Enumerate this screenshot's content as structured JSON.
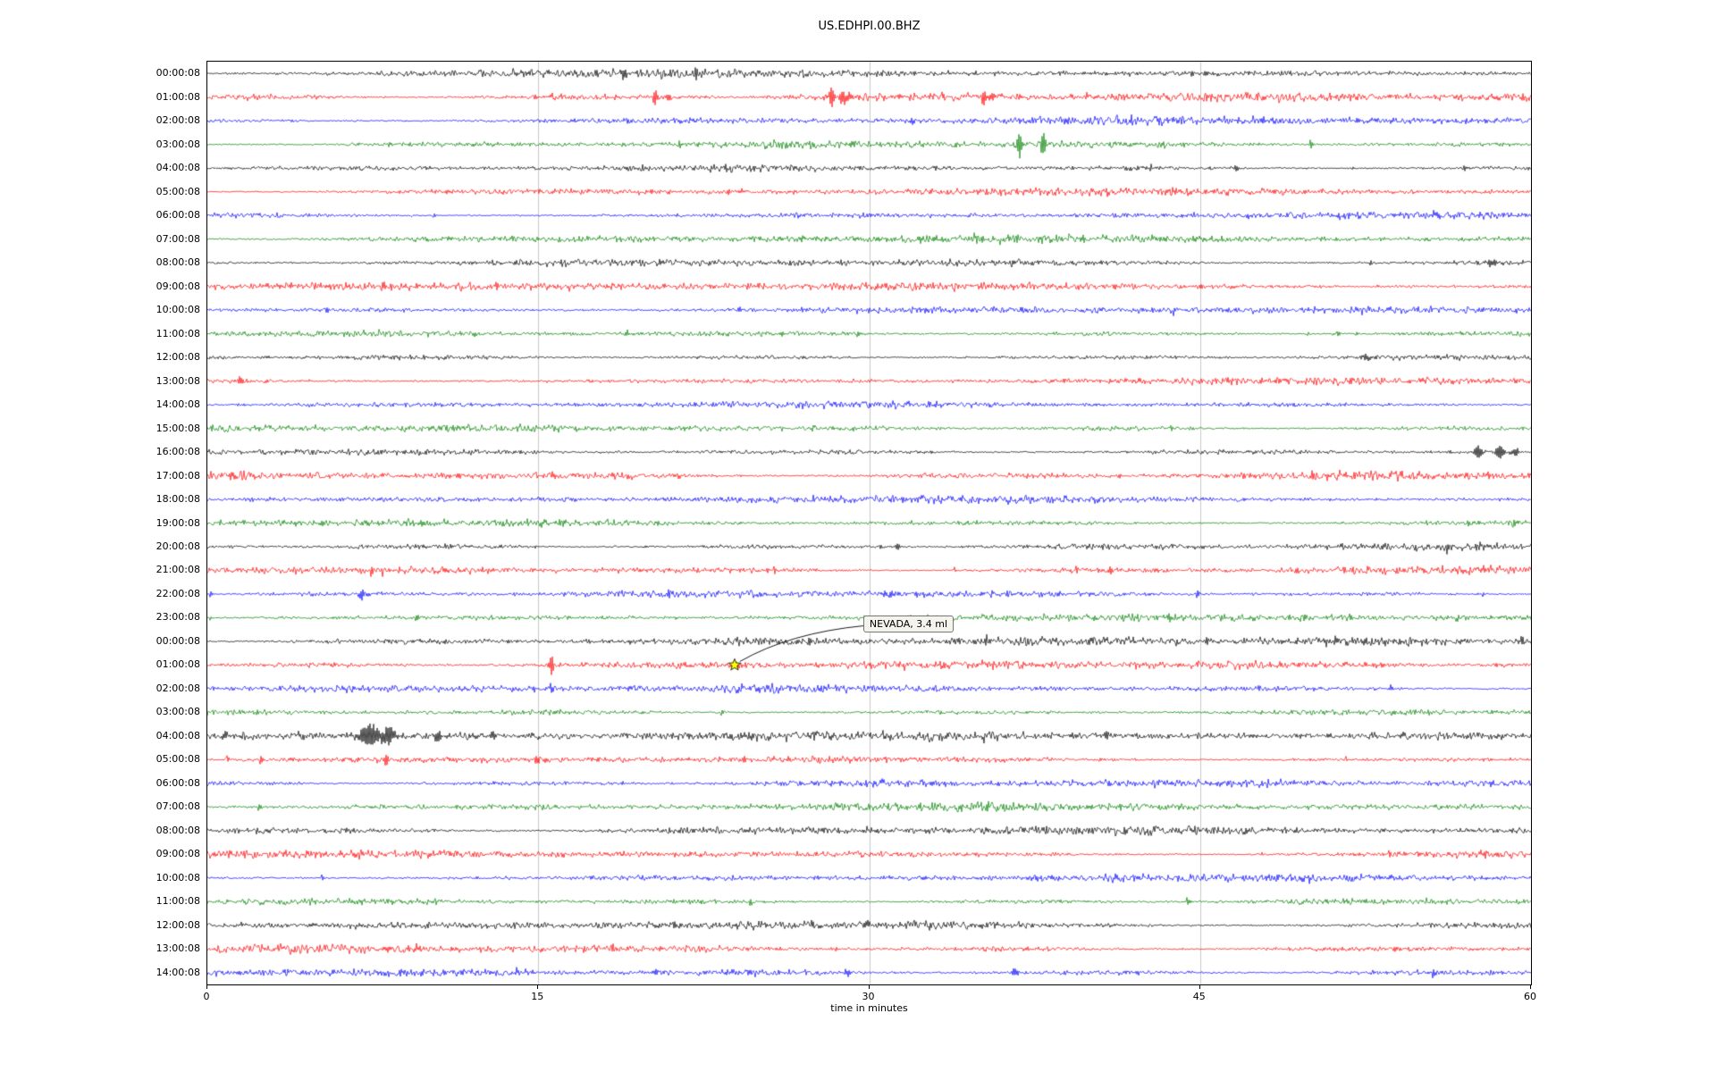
{
  "title": "US.EDHPI.00.BHZ",
  "xlabel": "time in minutes",
  "colors": {
    "black": "#000000",
    "red": "#ff0000",
    "blue": "#0000ff",
    "green": "#008000",
    "grid": "#c9c9c9",
    "axis": "#000000",
    "marker_fill": "#ffff00",
    "marker_edge": "#000000",
    "background": "#ffffff"
  },
  "annotation": {
    "label": "NEVADA, 3.4 ml"
  },
  "chart_data": {
    "type": "line",
    "kind": "helicorder-seismogram",
    "title": "US.EDHPI.00.BHZ",
    "xlabel": "time in minutes",
    "x_range_minutes": [
      0,
      60
    ],
    "x_ticks": [
      0,
      15,
      30,
      45,
      60
    ],
    "grid_lines_minutes": [
      15,
      30,
      45
    ],
    "rows": [
      {
        "label": "00:00:08",
        "color": "black"
      },
      {
        "label": "01:00:08",
        "color": "red"
      },
      {
        "label": "02:00:08",
        "color": "blue"
      },
      {
        "label": "03:00:08",
        "color": "green"
      },
      {
        "label": "04:00:08",
        "color": "black"
      },
      {
        "label": "05:00:08",
        "color": "red"
      },
      {
        "label": "06:00:08",
        "color": "blue"
      },
      {
        "label": "07:00:08",
        "color": "green"
      },
      {
        "label": "08:00:08",
        "color": "black"
      },
      {
        "label": "09:00:08",
        "color": "red"
      },
      {
        "label": "10:00:08",
        "color": "blue"
      },
      {
        "label": "11:00:08",
        "color": "green"
      },
      {
        "label": "12:00:08",
        "color": "black"
      },
      {
        "label": "13:00:08",
        "color": "red"
      },
      {
        "label": "14:00:08",
        "color": "blue"
      },
      {
        "label": "15:00:08",
        "color": "green"
      },
      {
        "label": "16:00:08",
        "color": "black"
      },
      {
        "label": "17:00:08",
        "color": "red"
      },
      {
        "label": "18:00:08",
        "color": "blue"
      },
      {
        "label": "19:00:08",
        "color": "green"
      },
      {
        "label": "20:00:08",
        "color": "black"
      },
      {
        "label": "21:00:08",
        "color": "red"
      },
      {
        "label": "22:00:08",
        "color": "blue"
      },
      {
        "label": "23:00:08",
        "color": "green"
      },
      {
        "label": "00:00:08",
        "color": "black"
      },
      {
        "label": "01:00:08",
        "color": "red"
      },
      {
        "label": "02:00:08",
        "color": "blue"
      },
      {
        "label": "03:00:08",
        "color": "green"
      },
      {
        "label": "04:00:08",
        "color": "black"
      },
      {
        "label": "05:00:08",
        "color": "red"
      },
      {
        "label": "06:00:08",
        "color": "blue"
      },
      {
        "label": "07:00:08",
        "color": "green"
      },
      {
        "label": "08:00:08",
        "color": "black"
      },
      {
        "label": "09:00:08",
        "color": "red"
      },
      {
        "label": "10:00:08",
        "color": "blue"
      },
      {
        "label": "11:00:08",
        "color": "green"
      },
      {
        "label": "12:00:08",
        "color": "black"
      },
      {
        "label": "13:00:08",
        "color": "red"
      },
      {
        "label": "14:00:08",
        "color": "blue"
      }
    ],
    "marker": {
      "row": 25,
      "minute": 23.9,
      "symbol": "star",
      "label": "NEVADA, 3.4 ml"
    },
    "events": [
      {
        "r": 0,
        "m": 22.2,
        "a": 3,
        "w": 1.5
      },
      {
        "r": 0,
        "m": 47.2,
        "a": 2.5,
        "w": 1.5
      },
      {
        "r": 1,
        "m": 20.3,
        "a": 7,
        "w": 2
      },
      {
        "r": 1,
        "m": 20.9,
        "a": 4,
        "w": 1.5
      },
      {
        "r": 1,
        "m": 28.3,
        "a": 9,
        "w": 2
      },
      {
        "r": 1,
        "m": 28.8,
        "a": 8,
        "w": 2
      },
      {
        "r": 1,
        "m": 29.1,
        "a": 5,
        "w": 1.5
      },
      {
        "r": 1,
        "m": 35.2,
        "a": 8,
        "w": 2
      },
      {
        "r": 1,
        "m": 35.6,
        "a": 4,
        "w": 1.5
      },
      {
        "r": 2,
        "m": 32.0,
        "a": 3,
        "w": 2
      },
      {
        "r": 3,
        "m": 36.8,
        "a": 12,
        "w": 1.8
      },
      {
        "r": 3,
        "m": 37.9,
        "a": 11,
        "w": 1.8
      },
      {
        "r": 3,
        "m": 21.4,
        "a": 3,
        "w": 1.5
      },
      {
        "r": 4,
        "m": 46.6,
        "a": 3,
        "w": 1.5
      },
      {
        "r": 4,
        "m": 57.0,
        "a": 3,
        "w": 1.5
      },
      {
        "r": 5,
        "m": 23.6,
        "a": 3.5,
        "w": 1.5
      },
      {
        "r": 7,
        "m": 36.3,
        "a": 2.5,
        "w": 1.5
      },
      {
        "r": 8,
        "m": 58.2,
        "a": 3,
        "w": 4
      },
      {
        "r": 9,
        "m": 16.4,
        "a": 3,
        "w": 1.5
      },
      {
        "r": 11,
        "m": 19.0,
        "a": 3,
        "w": 1.5
      },
      {
        "r": 11,
        "m": 26.0,
        "a": 3,
        "w": 1.5
      },
      {
        "r": 12,
        "m": 52.5,
        "a": 3,
        "w": 3
      },
      {
        "r": 13,
        "m": 1.5,
        "a": 4,
        "w": 2
      },
      {
        "r": 13,
        "m": 42.0,
        "a": 3,
        "w": 1.5
      },
      {
        "r": 16,
        "m": 57.6,
        "a": 6,
        "w": 3
      },
      {
        "r": 16,
        "m": 58.6,
        "a": 7,
        "w": 3
      },
      {
        "r": 16,
        "m": 59.3,
        "a": 5,
        "w": 2
      },
      {
        "r": 16,
        "m": 3.4,
        "a": 3,
        "w": 1.5
      },
      {
        "r": 17,
        "m": 10.6,
        "a": 3.5,
        "w": 1.5
      },
      {
        "r": 17,
        "m": 3.2,
        "a": 3,
        "w": 1.5
      },
      {
        "r": 19,
        "m": 5.2,
        "a": 3.5,
        "w": 1.5
      },
      {
        "r": 20,
        "m": 31.3,
        "a": 3.5,
        "w": 1.5
      },
      {
        "r": 21,
        "m": 41.0,
        "a": 3,
        "w": 1.5
      },
      {
        "r": 21,
        "m": 49.4,
        "a": 3.5,
        "w": 1.5
      },
      {
        "r": 22,
        "m": 7.0,
        "a": 5,
        "w": 1.5
      },
      {
        "r": 22,
        "m": 20.9,
        "a": 5,
        "w": 1.5
      },
      {
        "r": 22,
        "m": 31.0,
        "a": 3,
        "w": 1.5
      },
      {
        "r": 23,
        "m": 43.6,
        "a": 5,
        "w": 1.5
      },
      {
        "r": 23,
        "m": 49.7,
        "a": 3,
        "w": 1.5
      },
      {
        "r": 23,
        "m": 51.8,
        "a": 3.5,
        "w": 1.5
      },
      {
        "r": 24,
        "m": 35.3,
        "a": 3,
        "w": 1.5
      },
      {
        "r": 24,
        "m": 42.0,
        "a": 3.5,
        "w": 1.5
      },
      {
        "r": 24,
        "m": 45.3,
        "a": 3,
        "w": 1.5
      },
      {
        "r": 25,
        "m": 15.6,
        "a": 10,
        "w": 1.5
      },
      {
        "r": 25,
        "m": 24.0,
        "a": 3,
        "w": 2
      },
      {
        "r": 25,
        "m": 30.1,
        "a": 3,
        "w": 1.5
      },
      {
        "r": 26,
        "m": 15.6,
        "a": 4,
        "w": 1.5
      },
      {
        "r": 28,
        "m": 7.4,
        "a": 12,
        "w": 6
      },
      {
        "r": 28,
        "m": 8.2,
        "a": 10,
        "w": 4
      },
      {
        "r": 28,
        "m": 0.8,
        "a": 4,
        "w": 2
      },
      {
        "r": 28,
        "m": 10.5,
        "a": 5,
        "w": 3
      },
      {
        "r": 28,
        "m": 13.0,
        "a": 3,
        "w": 2
      },
      {
        "r": 29,
        "m": 14.9,
        "a": 5,
        "w": 1.5
      },
      {
        "r": 29,
        "m": 8.1,
        "a": 6,
        "w": 2
      },
      {
        "r": 31,
        "m": 44.0,
        "a": 2.5,
        "w": 1.5
      },
      {
        "r": 38,
        "m": 24.6,
        "a": 3.5,
        "w": 2
      },
      {
        "r": 38,
        "m": 36.6,
        "a": 4,
        "w": 3
      },
      {
        "r": 38,
        "m": 29.0,
        "a": 3,
        "w": 2
      }
    ]
  }
}
